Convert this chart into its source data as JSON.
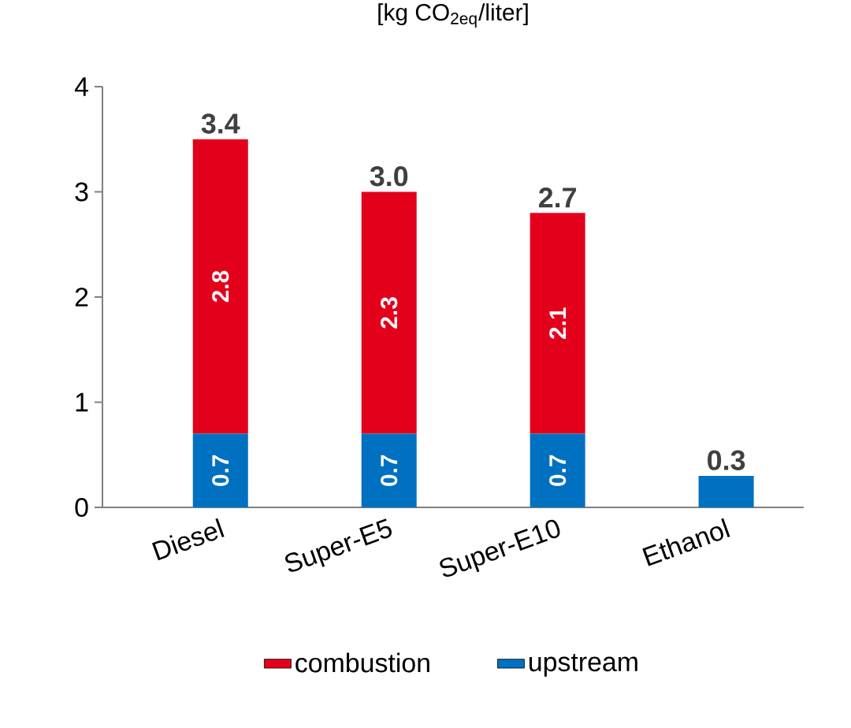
{
  "chart_data": {
    "type": "bar",
    "stacked": true,
    "title": "[kg CO$_{2eq}$/liter]",
    "categories": [
      "Diesel",
      "Super-E5",
      "Super-E10",
      "Ethanol"
    ],
    "series": [
      {
        "name": "upstream",
        "color": "#0070c0",
        "values": [
          0.7,
          0.7,
          0.7,
          0.3
        ],
        "value_labels": [
          "0.7",
          "0.7",
          "0.7",
          null
        ]
      },
      {
        "name": "combustion",
        "color": "#e3001b",
        "values": [
          2.8,
          2.3,
          2.1,
          null
        ],
        "value_labels": [
          "2.8",
          "2.3",
          "2.1",
          null
        ]
      }
    ],
    "totals": [
      "3.4",
      "3.0",
      "2.7",
      "0.3"
    ],
    "ylim": [
      0,
      4
    ],
    "yticks": [
      0,
      1,
      2,
      3,
      4
    ],
    "grid": false,
    "legend": "bottom"
  }
}
